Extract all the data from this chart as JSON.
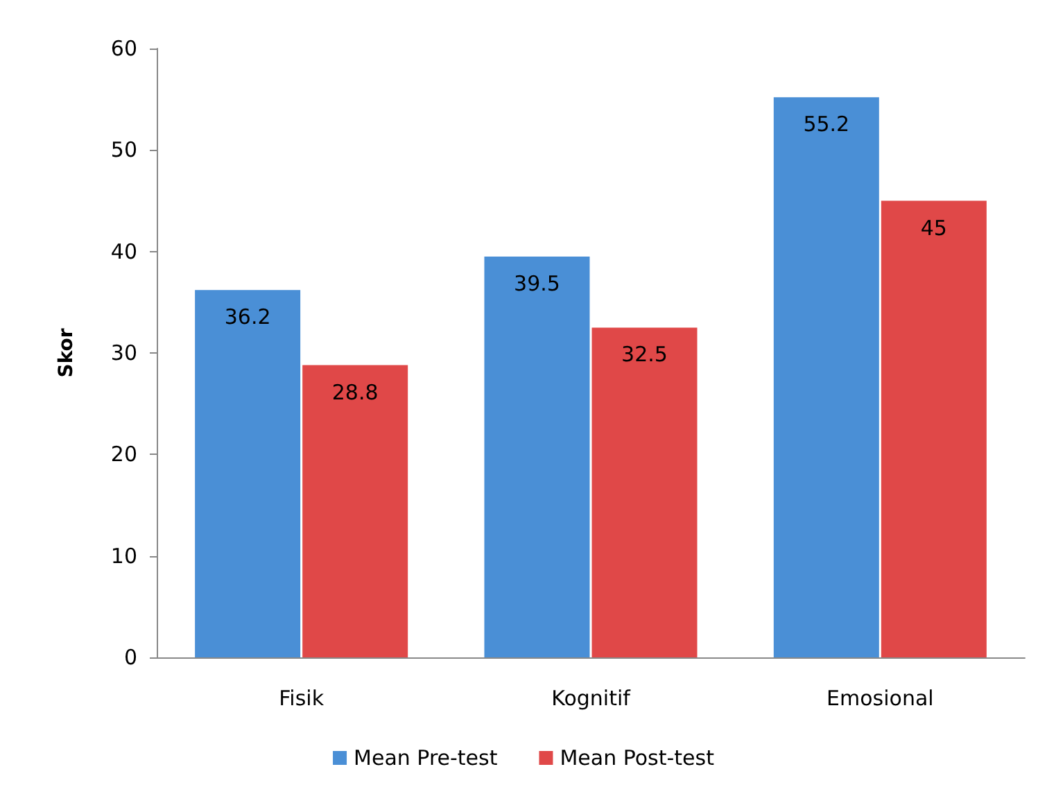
{
  "chart_data": {
    "type": "bar",
    "ylabel": "Skor",
    "categories": [
      "Fisik",
      "Kognitif",
      "Emosional"
    ],
    "series": [
      {
        "name": "Mean Pre-test",
        "color": "#4a8fd6",
        "values": [
          36.2,
          39.5,
          55.2
        ]
      },
      {
        "name": "Mean Post-test",
        "color": "#e04848",
        "values": [
          28.8,
          32.5,
          45
        ]
      }
    ],
    "ylim": [
      0,
      60
    ],
    "yticks": [
      0,
      10,
      20,
      30,
      40,
      50,
      60
    ],
    "grid": false,
    "legend": "bottom",
    "data_labels": true
  }
}
